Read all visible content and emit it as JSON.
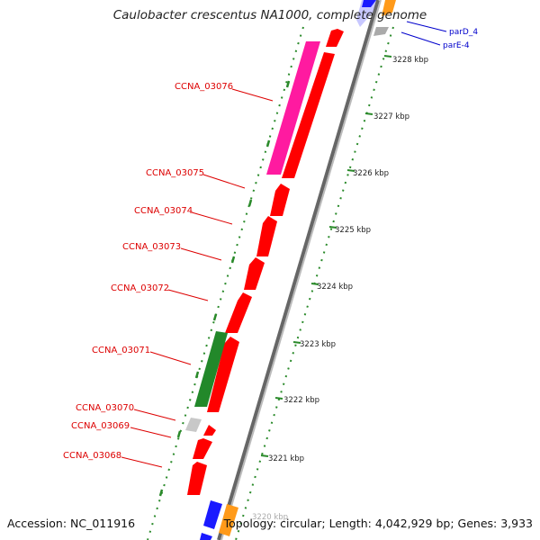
{
  "title": "Caulobacter crescentus NA1000, complete genome",
  "footer": {
    "accession": "Accession: NC_011916",
    "summary": "Topology: circular; Length: 4,042,929 bp; Genes: 3,933"
  },
  "genes_left": [
    {
      "label": "CCNA_03076",
      "color": "#dd0000"
    },
    {
      "label": "CCNA_03075",
      "color": "#dd0000"
    },
    {
      "label": "CCNA_03074",
      "color": "#dd0000"
    },
    {
      "label": "CCNA_03073",
      "color": "#dd0000"
    },
    {
      "label": "CCNA_03072",
      "color": "#dd0000"
    },
    {
      "label": "CCNA_03071",
      "color": "#dd0000"
    },
    {
      "label": "CCNA_03070",
      "color": "#dd0000"
    },
    {
      "label": "CCNA_03069",
      "color": "#dd0000"
    },
    {
      "label": "CCNA_03068",
      "color": "#dd0000"
    }
  ],
  "genes_right": [
    {
      "label": "parD_4",
      "color": "#0000cc"
    },
    {
      "label": "parE-4",
      "color": "#0000cc"
    }
  ],
  "kbp_ticks": [
    "3228 kbp",
    "3227 kbp",
    "3226 kbp",
    "3225 kbp",
    "3224 kbp",
    "3223 kbp",
    "3222 kbp",
    "3221 kbp",
    "3220 kbp"
  ],
  "colors": {
    "cds": "#ff0000",
    "pink_feature": "#ff1aa0",
    "green_feature": "#22882a",
    "grey_feature": "#c8c8c8",
    "blue_feature": "#1a1aff",
    "orange_feature": "#ff9a1a",
    "backbone": "#888888",
    "gc_dots": "#2a8a2a"
  }
}
